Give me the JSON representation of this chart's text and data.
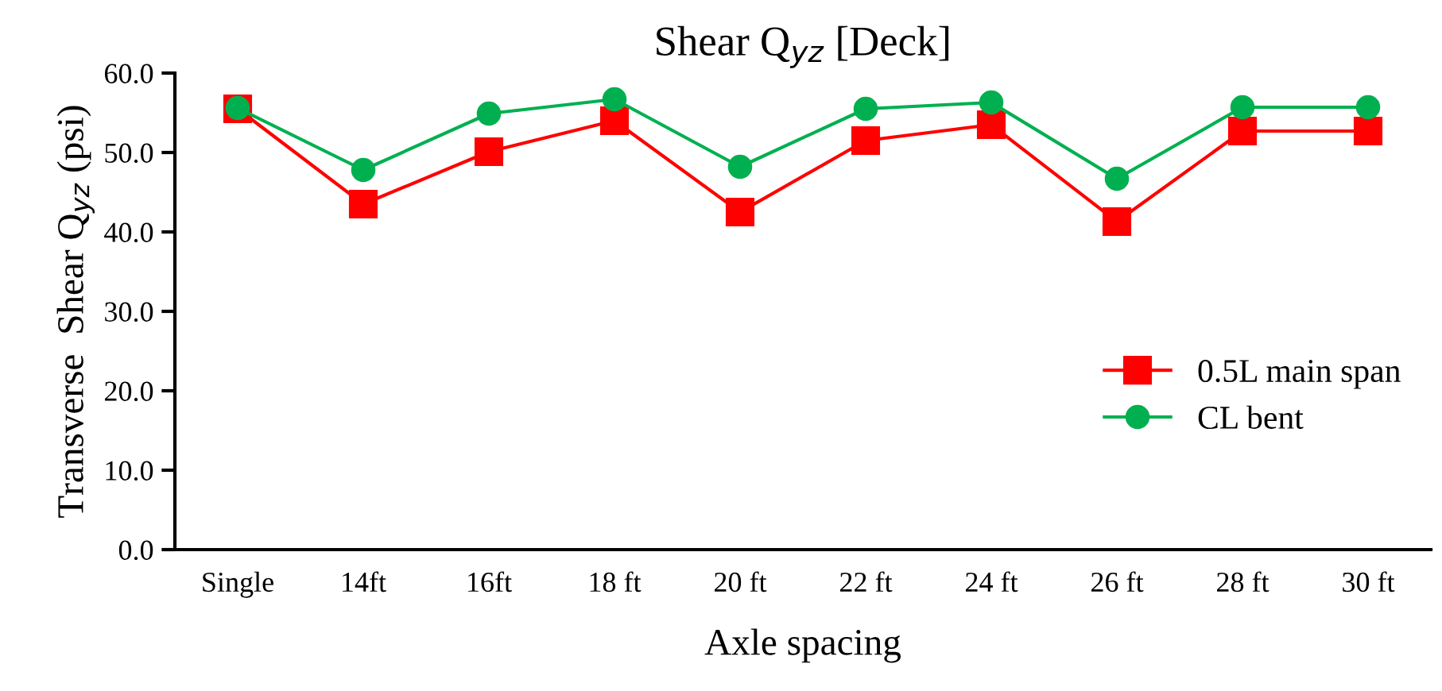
{
  "chart_data": {
    "type": "line",
    "title": "Shear Q$_{yz}$ [Deck]",
    "xlabel": "Axle spacing",
    "ylabel": "Transverse  Shear Q$_{yz}$ (psi)",
    "categories": [
      "Single",
      "14ft",
      "16ft",
      "18 ft",
      "20 ft",
      "22 ft",
      "24 ft",
      "26 ft",
      "28 ft",
      "30 ft"
    ],
    "series": [
      {
        "name": "0.5L main span",
        "color": "#ff0000",
        "marker": "square",
        "values": [
          55.5,
          43.5,
          50.1,
          54.0,
          42.5,
          51.5,
          53.5,
          41.3,
          52.7,
          52.7
        ]
      },
      {
        "name": "CL bent",
        "color": "#00b050",
        "marker": "circle",
        "values": [
          55.6,
          47.8,
          54.9,
          56.7,
          48.2,
          55.5,
          56.3,
          46.7,
          55.7,
          55.7
        ]
      }
    ],
    "ylim": [
      0,
      60
    ],
    "yticks": [
      {
        "value": 0,
        "label": "0.0"
      },
      {
        "value": 10,
        "label": "10.0"
      },
      {
        "value": 20,
        "label": "20.0"
      },
      {
        "value": 30,
        "label": "30.0"
      },
      {
        "value": 40,
        "label": "40.0"
      },
      {
        "value": 50,
        "label": "50.0"
      },
      {
        "value": 60,
        "label": "60.0"
      }
    ],
    "grid": false,
    "legend": "center right",
    "line_style": "solid"
  }
}
